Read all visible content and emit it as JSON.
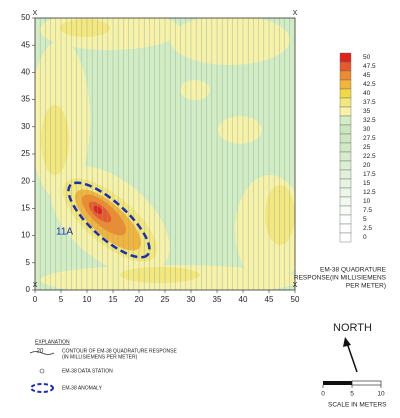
{
  "map": {
    "xlim": [
      0,
      50
    ],
    "ylim": [
      0,
      50
    ],
    "xticks": [
      0,
      5,
      10,
      15,
      20,
      25,
      30,
      35,
      40,
      45,
      50
    ],
    "yticks": [
      0,
      5,
      10,
      15,
      20,
      25,
      30,
      35,
      40,
      45,
      50
    ],
    "corner_marks": [
      "X",
      "X",
      "X",
      "X"
    ],
    "annotation": "11A"
  },
  "legend": {
    "levels": [
      0,
      2.5,
      5,
      7.5,
      10,
      12.5,
      15,
      17.5,
      20,
      22.5,
      25,
      27.5,
      30,
      32.5,
      35,
      37.5,
      40,
      42.5,
      45,
      47.5,
      50
    ],
    "colors": [
      "#ffffff",
      "#ffffff",
      "#ffffff",
      "#f8fcf6",
      "#f2f9ee",
      "#ecf6e6",
      "#e6f3df",
      "#e0f1d8",
      "#dbefd2",
      "#d6eccb",
      "#d1eac5",
      "#cde8c0",
      "#cae8bd",
      "#d2ecc3",
      "#f7f2a8",
      "#f4e77c",
      "#f1d944",
      "#f2b43a",
      "#ee8b2e",
      "#e7582a",
      "#df221c"
    ],
    "title": [
      "EM-38 QUADRATURE",
      "RESPONSE(IN MILLISIEMENS",
      "PER METER)"
    ]
  },
  "explanation": {
    "heading": "EXPLANATION",
    "contour_sample": "20",
    "contour_text": [
      "CONTOUR OF EM-38 QUADRATURE RESPONSE",
      "(IN MILLISIEMENS PER METER)"
    ],
    "station_text": "EM-38 DATA STATION",
    "anomaly_text": "EM-38 ANOMALY"
  },
  "north": "NORTH",
  "scale": {
    "ticks": [
      0,
      5,
      10
    ],
    "label": "SCALE IN METERS"
  }
}
